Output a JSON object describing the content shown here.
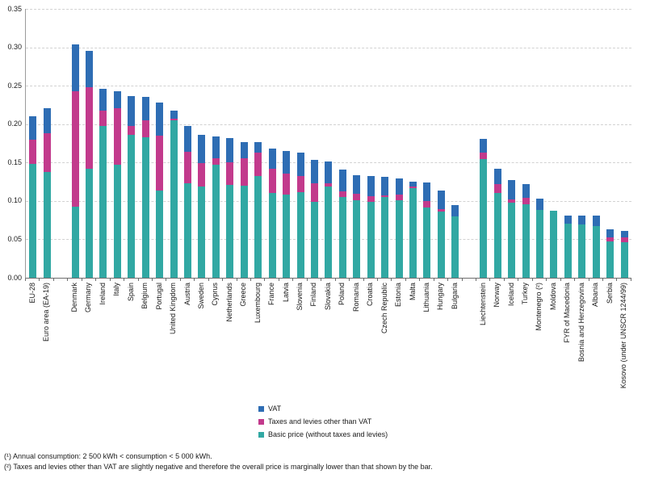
{
  "chart_data": {
    "type": "bar",
    "stacked": true,
    "title": "",
    "xlabel": "",
    "ylabel": "",
    "ylim": [
      0,
      0.35
    ],
    "y_ticks": [
      "0.00",
      "0.05",
      "0.10",
      "0.15",
      "0.20",
      "0.25",
      "0.30",
      "0.35"
    ],
    "grid": "horizontal-dashed",
    "legend_position": "bottom-center",
    "series_order_bottom_to_top": [
      "basic",
      "other",
      "vat"
    ],
    "legend": [
      {
        "key": "vat",
        "label": "VAT",
        "color": "#2e6db4"
      },
      {
        "key": "other",
        "label": "Taxes and levies other than VAT",
        "color": "#c23a8c"
      },
      {
        "key": "basic",
        "label": "Basic price (without taxes and levies)",
        "color": "#31a8a3"
      }
    ],
    "groups": [
      {
        "bars": [
          {
            "label": "EU-28",
            "basic": 0.148,
            "other": 0.032,
            "vat": 0.031
          },
          {
            "label": "Euro area (EA-19)",
            "basic": 0.138,
            "other": 0.05,
            "vat": 0.033
          }
        ]
      },
      {
        "bars": [
          {
            "label": "Denmark",
            "basic": 0.093,
            "other": 0.15,
            "vat": 0.061
          },
          {
            "label": "Germany",
            "basic": 0.142,
            "other": 0.106,
            "vat": 0.047
          },
          {
            "label": "Ireland",
            "basic": 0.198,
            "other": 0.02,
            "vat": 0.028
          },
          {
            "label": "Italy",
            "basic": 0.147,
            "other": 0.074,
            "vat": 0.022
          },
          {
            "label": "Spain",
            "basic": 0.186,
            "other": 0.012,
            "vat": 0.039
          },
          {
            "label": "Belgium",
            "basic": 0.183,
            "other": 0.022,
            "vat": 0.03
          },
          {
            "label": "Portugal",
            "basic": 0.114,
            "other": 0.071,
            "vat": 0.043
          },
          {
            "label": "United Kingdom",
            "basic": 0.205,
            "other": 0.002,
            "vat": 0.011
          },
          {
            "label": "Austria",
            "basic": 0.123,
            "other": 0.041,
            "vat": 0.034
          },
          {
            "label": "Sweden",
            "basic": 0.119,
            "other": 0.031,
            "vat": 0.037
          },
          {
            "label": "Cyprus",
            "basic": 0.147,
            "other": 0.008,
            "vat": 0.028
          },
          {
            "label": "Netherlands",
            "basic": 0.121,
            "other": 0.029,
            "vat": 0.032
          },
          {
            "label": "Greece",
            "basic": 0.12,
            "other": 0.036,
            "vat": 0.021
          },
          {
            "label": "Luxembourg",
            "basic": 0.132,
            "other": 0.03,
            "vat": 0.014
          },
          {
            "label": "France",
            "basic": 0.11,
            "other": 0.032,
            "vat": 0.026
          },
          {
            "label": "Latvia",
            "basic": 0.108,
            "other": 0.027,
            "vat": 0.029
          },
          {
            "label": "Slovenia",
            "basic": 0.111,
            "other": 0.021,
            "vat": 0.03
          },
          {
            "label": "Finland",
            "basic": 0.099,
            "other": 0.024,
            "vat": 0.03
          },
          {
            "label": "Slovakia",
            "basic": 0.119,
            "other": 0.004,
            "vat": 0.028
          },
          {
            "label": "Poland",
            "basic": 0.105,
            "other": 0.007,
            "vat": 0.028
          },
          {
            "label": "Romania",
            "basic": 0.101,
            "other": 0.008,
            "vat": 0.024
          },
          {
            "label": "Croatia",
            "basic": 0.099,
            "other": 0.007,
            "vat": 0.026
          },
          {
            "label": "Czech Republic",
            "basic": 0.105,
            "other": 0.002,
            "vat": 0.024
          },
          {
            "label": "Estonia",
            "basic": 0.101,
            "other": 0.007,
            "vat": 0.021
          },
          {
            "label": "Malta",
            "basic": 0.117,
            "other": 0.002,
            "vat": 0.006
          },
          {
            "label": "Lithuania",
            "basic": 0.091,
            "other": 0.008,
            "vat": 0.024
          },
          {
            "label": "Hungary",
            "basic": 0.086,
            "other": 0.003,
            "vat": 0.024
          },
          {
            "label": "Bulgaria",
            "basic": 0.08,
            "other": 0.0,
            "vat": 0.015
          }
        ]
      },
      {
        "bars": [
          {
            "label": "Liechtenstein",
            "basic": 0.154,
            "other": 0.008,
            "vat": 0.018
          },
          {
            "label": "Norway",
            "basic": 0.11,
            "other": 0.012,
            "vat": 0.02
          },
          {
            "label": "Iceland",
            "basic": 0.098,
            "other": 0.004,
            "vat": 0.025
          },
          {
            "label": "Turkey",
            "basic": 0.096,
            "other": 0.008,
            "vat": 0.018
          },
          {
            "label": "Montenegro (²)",
            "basic": 0.088,
            "other": 0.0,
            "vat": 0.015
          },
          {
            "label": "Moldova",
            "basic": 0.087,
            "other": 0.0,
            "vat": 0.0
          },
          {
            "label": "FYR of Macedonia",
            "basic": 0.07,
            "other": 0.0,
            "vat": 0.011
          },
          {
            "label": "Bosnia and Herzegovina",
            "basic": 0.069,
            "other": 0.0,
            "vat": 0.012
          },
          {
            "label": "Albania",
            "basic": 0.067,
            "other": 0.0,
            "vat": 0.014
          },
          {
            "label": "Serbia",
            "basic": 0.047,
            "other": 0.005,
            "vat": 0.011
          },
          {
            "label": "Kosovo (under UNSCR 1244/99)",
            "basic": 0.046,
            "other": 0.006,
            "vat": 0.008
          }
        ]
      }
    ]
  },
  "footnotes": [
    "(¹) Annual consumption: 2 500 kWh < consumption < 5 000 kWh.",
    "(²) Taxes and levies other than VAT are slightly negative and therefore the overall price is marginally lower than that shown by the bar."
  ]
}
